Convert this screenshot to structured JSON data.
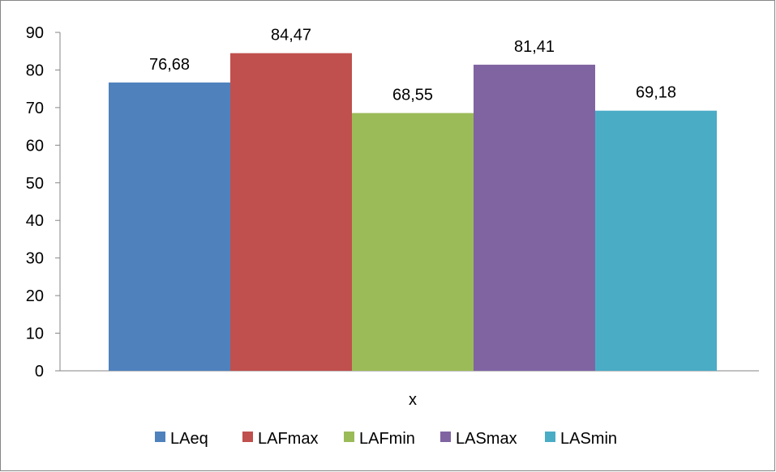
{
  "chart_data": {
    "type": "bar",
    "categories": [
      "x"
    ],
    "series": [
      {
        "name": "LAeq",
        "values": [
          76.68
        ],
        "label": "76,68",
        "color": "#4f81bd"
      },
      {
        "name": "LAFmax",
        "values": [
          84.47
        ],
        "label": "84,47",
        "color": "#c0504d"
      },
      {
        "name": "LAFmin",
        "values": [
          68.55
        ],
        "label": "68,55",
        "color": "#9bbb59"
      },
      {
        "name": "LASmax",
        "values": [
          81.41
        ],
        "label": "81,41",
        "color": "#8064a2"
      },
      {
        "name": "LASmin",
        "values": [
          69.18
        ],
        "label": "69,18",
        "color": "#4bacc6"
      }
    ],
    "yticks": [
      "0",
      "10",
      "20",
      "30",
      "40",
      "50",
      "60",
      "70",
      "80",
      "90"
    ],
    "ylim": [
      0,
      90
    ],
    "grid": false,
    "legend": "bottom"
  }
}
